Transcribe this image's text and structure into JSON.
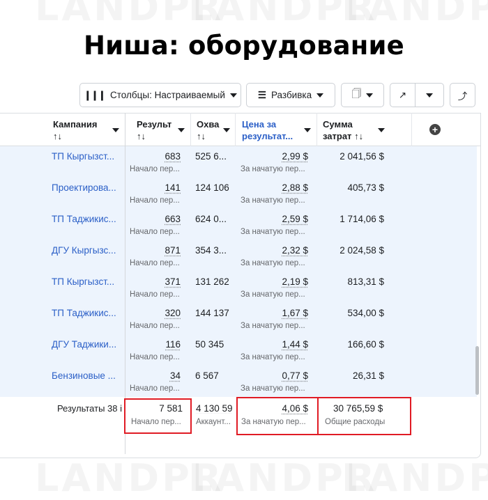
{
  "title": "Ниша: оборудование",
  "watermark": "LANDPR",
  "toolbar": {
    "columns_label": "Столбцы: Настраиваемый",
    "breakdown_label": "Разбивка"
  },
  "headers": {
    "campaign": "Кампания",
    "result": "Результ",
    "reach": "Охва",
    "cost_line1": "Цена за",
    "cost_line2": "результат...",
    "spend_line1": "Сумма",
    "spend_line2": "затрат",
    "sort": "↑↓"
  },
  "rows": [
    {
      "campaign": "ТП Кыргызст...",
      "result": "683",
      "result_sub": "Начало пер...",
      "reach": "525 6...",
      "cost": "2,99 $",
      "cost_sub": "За начатую пер...",
      "spend": "2 041,56 $"
    },
    {
      "campaign": "Проектирова...",
      "result": "141",
      "result_sub": "Начало пер...",
      "reach": "124 106",
      "cost": "2,88 $",
      "cost_sub": "За начатую пер...",
      "spend": "405,73 $"
    },
    {
      "campaign": "ТП Таджикис...",
      "result": "663",
      "result_sub": "Начало пер...",
      "reach": "624 0...",
      "cost": "2,59 $",
      "cost_sub": "За начатую пер...",
      "spend": "1 714,06 $"
    },
    {
      "campaign": "ДГУ Кыргызс...",
      "result": "871",
      "result_sub": "Начало пер...",
      "reach": "354 3...",
      "cost": "2,32 $",
      "cost_sub": "За начатую пер...",
      "spend": "2 024,58 $"
    },
    {
      "campaign": "ТП Кыргызст...",
      "result": "371",
      "result_sub": "Начало пер...",
      "reach": "131 262",
      "cost": "2,19 $",
      "cost_sub": "За начатую пер...",
      "spend": "813,31 $"
    },
    {
      "campaign": "ТП Таджикис...",
      "result": "320",
      "result_sub": "Начало пер...",
      "reach": "144 137",
      "cost": "1,67 $",
      "cost_sub": "За начатую пер...",
      "spend": "534,00 $"
    },
    {
      "campaign": "ДГУ Таджики...",
      "result": "116",
      "result_sub": "Начало пер...",
      "reach": "50 345",
      "cost": "1,44 $",
      "cost_sub": "За начатую пер...",
      "spend": "166,60 $"
    },
    {
      "campaign": "Бензиновые ...",
      "result": "34",
      "result_sub": "Начало пер...",
      "reach": "6 567",
      "cost": "0,77 $",
      "cost_sub": "За начатую пер...",
      "spend": "26,31 $"
    }
  ],
  "totals": {
    "label": "Результаты 38 і",
    "result": "7 581",
    "result_sub": "Начало пер...",
    "reach": "4 130 59",
    "reach_sub": "Аккаунт...",
    "cost": "4,06 $",
    "cost_sub": "За начатую пер...",
    "spend": "30 765,59 $",
    "spend_sub": "Общие расходы"
  },
  "colors": {
    "link": "#2b5fc7",
    "highlight": "#e01b24",
    "row_bg": "#edf4fd"
  }
}
